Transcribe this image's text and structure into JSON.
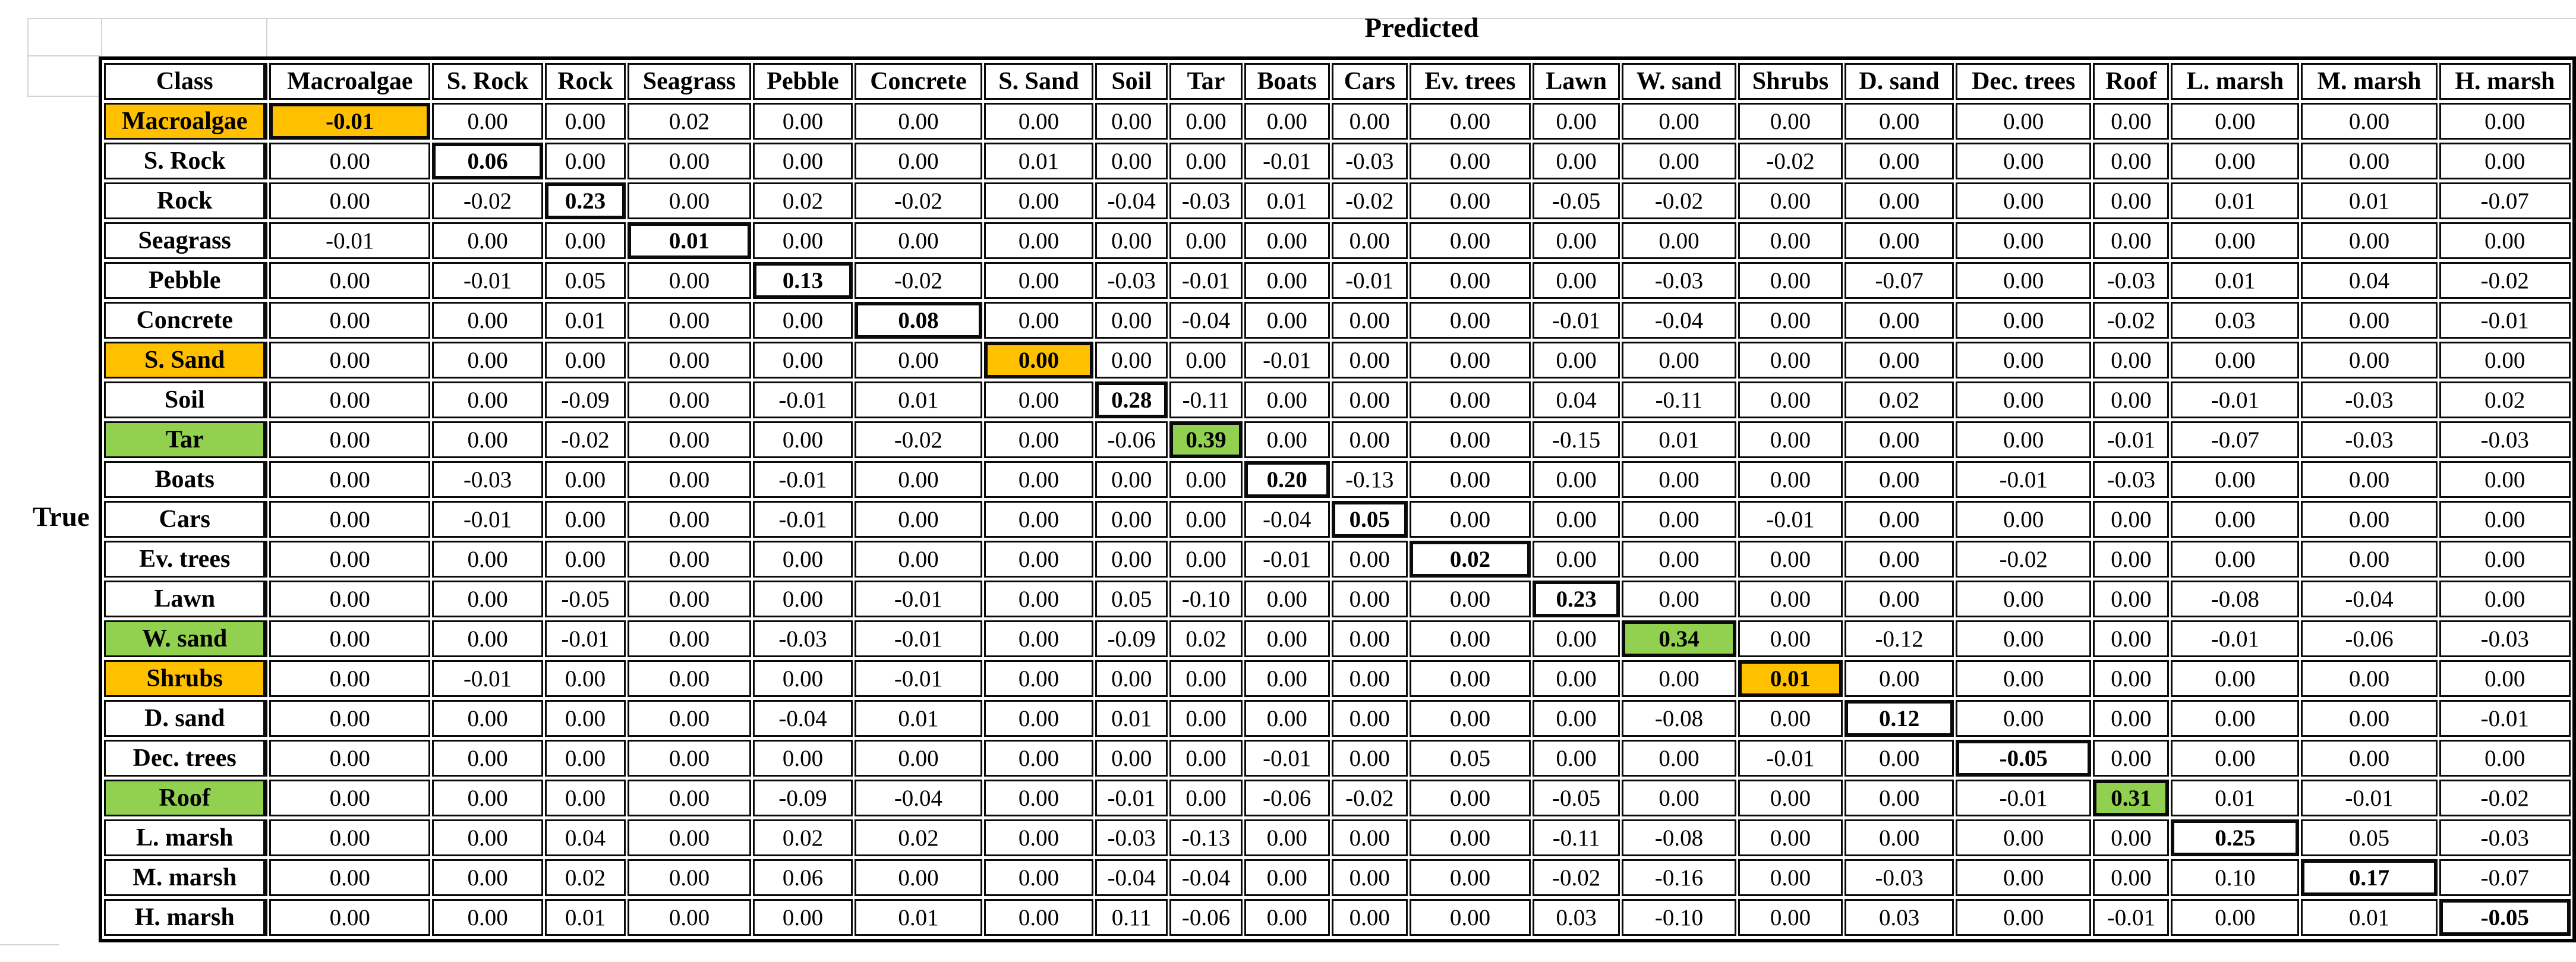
{
  "sheet": {
    "axis_top_label": "Predicted",
    "axis_left_label": "True",
    "corner_label": "Class"
  },
  "colors": {
    "orange_highlight": "#FFC000",
    "green_highlight": "#92D050",
    "border_black": "#0a0a0a",
    "gridline_gray": "#d4d4d4"
  },
  "chart_data": {
    "type": "heatmap",
    "x_label": "Predicted",
    "y_label": "True",
    "columns": [
      "Macroalgae",
      "S. Rock",
      "Rock",
      "Seagrass",
      "Pebble",
      "Concrete",
      "S. Sand",
      "Soil",
      "Tar",
      "Boats",
      "Cars",
      "Ev. trees",
      "Lawn",
      "W. sand",
      "Shrubs",
      "D. sand",
      "Dec. trees",
      "Roof",
      "L. marsh",
      "M. marsh",
      "H. marsh"
    ],
    "rows": [
      "Macroalgae",
      "S. Rock",
      "Rock",
      "Seagrass",
      "Pebble",
      "Concrete",
      "S. Sand",
      "Soil",
      "Tar",
      "Boats",
      "Cars",
      "Ev. trees",
      "Lawn",
      "W. sand",
      "Shrubs",
      "D. sand",
      "Dec. trees",
      "Roof",
      "L. marsh",
      "M. marsh",
      "H. marsh"
    ],
    "values": [
      [
        -0.01,
        0.0,
        0.0,
        0.02,
        0.0,
        0.0,
        0.0,
        0.0,
        0.0,
        0.0,
        0.0,
        0.0,
        0.0,
        0.0,
        0.0,
        0.0,
        0.0,
        0.0,
        0.0,
        0.0,
        0.0
      ],
      [
        0.0,
        0.06,
        0.0,
        0.0,
        0.0,
        0.0,
        0.01,
        0.0,
        0.0,
        -0.01,
        -0.03,
        0.0,
        0.0,
        0.0,
        -0.02,
        0.0,
        0.0,
        0.0,
        0.0,
        0.0,
        0.0
      ],
      [
        0.0,
        -0.02,
        0.23,
        0.0,
        0.02,
        -0.02,
        0.0,
        -0.04,
        -0.03,
        0.01,
        -0.02,
        0.0,
        -0.05,
        -0.02,
        0.0,
        0.0,
        0.0,
        0.0,
        0.01,
        0.01,
        -0.07
      ],
      [
        -0.01,
        0.0,
        0.0,
        0.01,
        0.0,
        0.0,
        0.0,
        0.0,
        0.0,
        0.0,
        0.0,
        0.0,
        0.0,
        0.0,
        0.0,
        0.0,
        0.0,
        0.0,
        0.0,
        0.0,
        0.0
      ],
      [
        0.0,
        -0.01,
        0.05,
        0.0,
        0.13,
        -0.02,
        0.0,
        -0.03,
        -0.01,
        0.0,
        -0.01,
        0.0,
        0.0,
        -0.03,
        0.0,
        -0.07,
        0.0,
        -0.03,
        0.01,
        0.04,
        -0.02
      ],
      [
        0.0,
        0.0,
        0.01,
        0.0,
        0.0,
        0.08,
        0.0,
        0.0,
        -0.04,
        0.0,
        0.0,
        0.0,
        -0.01,
        -0.04,
        0.0,
        0.0,
        0.0,
        -0.02,
        0.03,
        0.0,
        -0.01
      ],
      [
        0.0,
        0.0,
        0.0,
        0.0,
        0.0,
        0.0,
        0.0,
        0.0,
        0.0,
        -0.01,
        0.0,
        0.0,
        0.0,
        0.0,
        0.0,
        0.0,
        0.0,
        0.0,
        0.0,
        0.0,
        0.0
      ],
      [
        0.0,
        0.0,
        -0.09,
        0.0,
        -0.01,
        0.01,
        0.0,
        0.28,
        -0.11,
        0.0,
        0.0,
        0.0,
        0.04,
        -0.11,
        0.0,
        0.02,
        0.0,
        0.0,
        -0.01,
        -0.03,
        0.02
      ],
      [
        0.0,
        0.0,
        -0.02,
        0.0,
        0.0,
        -0.02,
        0.0,
        -0.06,
        0.39,
        0.0,
        0.0,
        0.0,
        -0.15,
        0.01,
        0.0,
        0.0,
        0.0,
        -0.01,
        -0.07,
        -0.03,
        -0.03
      ],
      [
        0.0,
        -0.03,
        0.0,
        0.0,
        -0.01,
        0.0,
        0.0,
        0.0,
        0.0,
        0.2,
        -0.13,
        0.0,
        0.0,
        0.0,
        0.0,
        0.0,
        -0.01,
        -0.03,
        0.0,
        0.0,
        0.0
      ],
      [
        0.0,
        -0.01,
        0.0,
        0.0,
        -0.01,
        0.0,
        0.0,
        0.0,
        0.0,
        -0.04,
        0.05,
        0.0,
        0.0,
        0.0,
        -0.01,
        0.0,
        0.0,
        0.0,
        0.0,
        0.0,
        0.0
      ],
      [
        0.0,
        0.0,
        0.0,
        0.0,
        0.0,
        0.0,
        0.0,
        0.0,
        0.0,
        -0.01,
        0.0,
        0.02,
        0.0,
        0.0,
        0.0,
        0.0,
        -0.02,
        0.0,
        0.0,
        0.0,
        0.0
      ],
      [
        0.0,
        0.0,
        -0.05,
        0.0,
        0.0,
        -0.01,
        0.0,
        0.05,
        -0.1,
        0.0,
        0.0,
        0.0,
        0.23,
        0.0,
        0.0,
        0.0,
        0.0,
        0.0,
        -0.08,
        -0.04,
        0.0
      ],
      [
        0.0,
        0.0,
        -0.01,
        0.0,
        -0.03,
        -0.01,
        0.0,
        -0.09,
        0.02,
        0.0,
        0.0,
        0.0,
        0.0,
        0.34,
        0.0,
        -0.12,
        0.0,
        0.0,
        -0.01,
        -0.06,
        -0.03
      ],
      [
        0.0,
        -0.01,
        0.0,
        0.0,
        0.0,
        -0.01,
        0.0,
        0.0,
        0.0,
        0.0,
        0.0,
        0.0,
        0.0,
        0.0,
        0.01,
        0.0,
        0.0,
        0.0,
        0.0,
        0.0,
        0.0
      ],
      [
        0.0,
        0.0,
        0.0,
        0.0,
        -0.04,
        0.01,
        0.0,
        0.01,
        0.0,
        0.0,
        0.0,
        0.0,
        0.0,
        -0.08,
        0.0,
        0.12,
        0.0,
        0.0,
        0.0,
        0.0,
        -0.01
      ],
      [
        0.0,
        0.0,
        0.0,
        0.0,
        0.0,
        0.0,
        0.0,
        0.0,
        0.0,
        -0.01,
        0.0,
        0.05,
        0.0,
        0.0,
        -0.01,
        0.0,
        -0.05,
        0.0,
        0.0,
        0.0,
        0.0
      ],
      [
        0.0,
        0.0,
        0.0,
        0.0,
        -0.09,
        -0.04,
        0.0,
        -0.01,
        0.0,
        -0.06,
        -0.02,
        0.0,
        -0.05,
        0.0,
        0.0,
        0.0,
        -0.01,
        0.31,
        0.01,
        -0.01,
        -0.02
      ],
      [
        0.0,
        0.0,
        0.04,
        0.0,
        0.02,
        0.02,
        0.0,
        -0.03,
        -0.13,
        0.0,
        0.0,
        0.0,
        -0.11,
        -0.08,
        0.0,
        0.0,
        0.0,
        0.0,
        0.25,
        0.05,
        -0.03
      ],
      [
        0.0,
        0.0,
        0.02,
        0.0,
        0.06,
        0.0,
        0.0,
        -0.04,
        -0.04,
        0.0,
        0.0,
        0.0,
        -0.02,
        -0.16,
        0.0,
        -0.03,
        0.0,
        0.0,
        0.1,
        0.17,
        -0.07
      ],
      [
        0.0,
        0.0,
        0.01,
        0.0,
        0.0,
        0.01,
        0.0,
        0.11,
        -0.06,
        0.0,
        0.0,
        0.0,
        0.03,
        -0.1,
        0.0,
        0.03,
        0.0,
        -0.01,
        0.0,
        0.01,
        -0.05
      ]
    ],
    "diagonal_bold": true,
    "row_highlights": {
      "Macroalgae": "orange",
      "S. Sand": "orange",
      "Shrubs": "orange",
      "Tar": "green",
      "W. sand": "green",
      "Roof": "green"
    },
    "legend_position": "none",
    "grid": true
  }
}
